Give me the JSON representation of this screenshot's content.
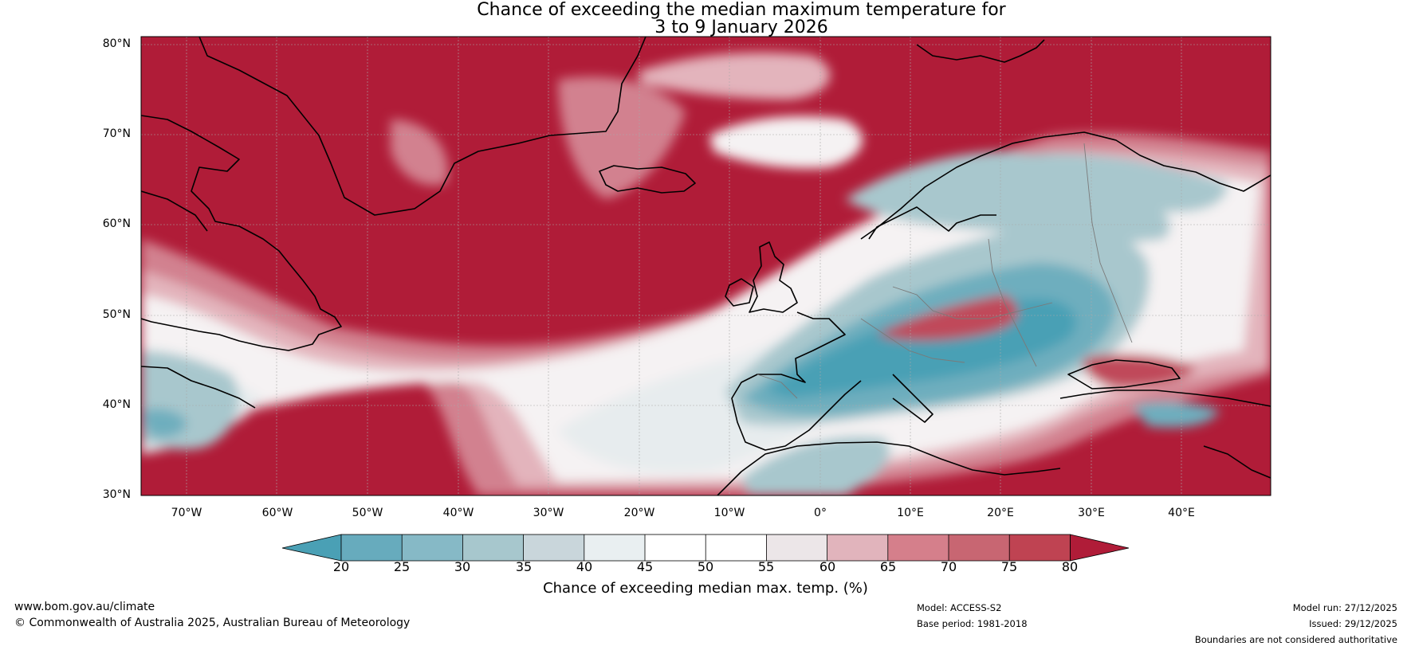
{
  "title": {
    "line1": "Chance of exceeding the median maximum temperature for",
    "line2": "3 to 9 January 2026"
  },
  "map": {
    "lat_labels": [
      "80°N",
      "70°N",
      "60°N",
      "50°N",
      "40°N",
      "30°N"
    ],
    "lon_labels": [
      "70°W",
      "60°W",
      "50°W",
      "40°W",
      "30°W",
      "20°W",
      "10°W",
      "0°",
      "10°E",
      "20°E",
      "30°E",
      "40°E"
    ]
  },
  "colorbar": {
    "ticks": [
      "20",
      "25",
      "30",
      "35",
      "40",
      "45",
      "50",
      "55",
      "60",
      "65",
      "70",
      "75",
      "80"
    ],
    "label": "Chance of exceeding median max. temp. (%)",
    "colors": [
      "#4aa0b5",
      "#67abbd",
      "#86b9c6",
      "#a7c7cd",
      "#c9d6db",
      "#e9eff1",
      "#ffffff",
      "#ffffff",
      "#ece6e8",
      "#e1b4bc",
      "#d57f8b",
      "#c86672",
      "#bf4352",
      "#b01c38"
    ]
  },
  "footer": {
    "url": "www.bom.gov.au/climate",
    "copyright": "© Commonwealth of Australia 2025, Australian Bureau of Meteorology",
    "model": "Model: ACCESS-S2",
    "base_period": "Base period: 1981-2018",
    "model_run": "Model run: 27/12/2025",
    "issued": "Issued: 29/12/2025",
    "disclaimer": "Boundaries are not considered authoritative"
  }
}
